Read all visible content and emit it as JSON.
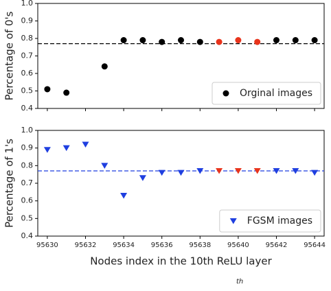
{
  "chart_data": [
    {
      "type": "scatter",
      "ylabel": "Percentage of 0's",
      "x": [
        95630,
        95631,
        95633,
        95634,
        95635,
        95636,
        95637,
        95638,
        95639,
        95640,
        95641,
        95642,
        95643,
        95644
      ],
      "series": [
        {
          "name": "Orginal images",
          "color": "#000000",
          "marker": "circle",
          "point_colors": [
            "#000000",
            "#000000",
            "#000000",
            "#000000",
            "#000000",
            "#000000",
            "#000000",
            "#000000",
            "#e8341c",
            "#e8341c",
            "#e8341c",
            "#000000",
            "#000000",
            "#000000"
          ],
          "values": [
            0.51,
            0.49,
            0.64,
            0.79,
            0.79,
            0.78,
            0.79,
            0.78,
            0.78,
            0.79,
            0.78,
            0.79,
            0.79,
            0.79
          ]
        }
      ],
      "hline": 0.77,
      "hline_color": "#000000",
      "xlim": [
        95629.5,
        95644.5
      ],
      "xticks": [
        95630,
        95632,
        95634,
        95636,
        95638,
        95640,
        95642,
        95644
      ],
      "xtick_labels": false,
      "ylim": [
        0.4,
        1
      ],
      "yticks": [
        0.4,
        0.5,
        0.6,
        0.7,
        0.8,
        0.9,
        {
          "value": 1,
          "label": "1.0"
        }
      ],
      "legend": "lower right"
    },
    {
      "type": "scatter",
      "ylabel": "Percentage of 1's",
      "xlabel": "Nodes index in the 10th ReLU layer",
      "x": [
        95630,
        95631,
        95632,
        95633,
        95634,
        95635,
        95636,
        95637,
        95638,
        95639,
        95640,
        95641,
        95642,
        95643,
        95644
      ],
      "series": [
        {
          "name": "FGSM images",
          "color": "#1f3fe0",
          "marker": "triangle-down",
          "point_colors": [
            "#1f3fe0",
            "#1f3fe0",
            "#1f3fe0",
            "#1f3fe0",
            "#1f3fe0",
            "#1f3fe0",
            "#1f3fe0",
            "#1f3fe0",
            "#1f3fe0",
            "#e8341c",
            "#e8341c",
            "#e8341c",
            "#1f3fe0",
            "#1f3fe0",
            "#1f3fe0"
          ],
          "values": [
            0.89,
            0.9,
            0.92,
            0.8,
            0.63,
            0.73,
            0.76,
            0.76,
            0.77,
            0.77,
            0.77,
            0.77,
            0.77,
            0.77,
            0.76
          ]
        }
      ],
      "hline": 0.77,
      "hline_color": "#1f3fe0",
      "xlim": [
        95629.5,
        95644.5
      ],
      "xticks": [
        95630,
        95632,
        95634,
        95636,
        95638,
        95640,
        95642,
        95644
      ],
      "xtick_labels": true,
      "ylim": [
        0.4,
        1
      ],
      "yticks": [
        0.4,
        0.5,
        0.6,
        0.7,
        0.8,
        0.9,
        {
          "value": 1,
          "label": "1.0"
        }
      ],
      "legend": "lower right"
    }
  ],
  "caption_fragment": "th"
}
